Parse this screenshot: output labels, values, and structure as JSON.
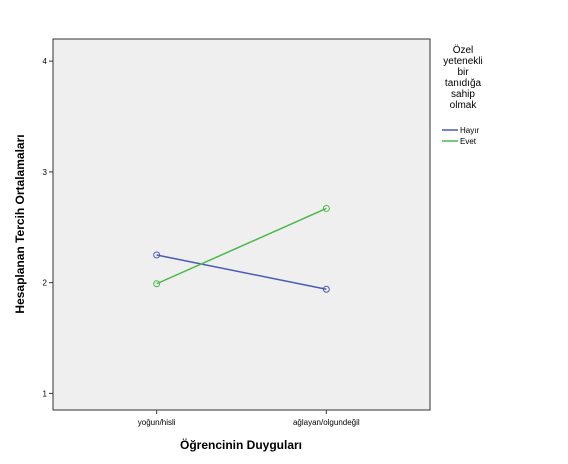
{
  "chart_data": {
    "type": "line",
    "xlabel": "Öğrencinin Duyguları",
    "ylabel": "Hesaplanan Tercih Ortalamaları",
    "categories": [
      "yoğun/hisli",
      "ağlayan/olgundeğil"
    ],
    "ylim": [
      0.85,
      4.2
    ],
    "yticks": [
      1,
      2,
      3,
      4
    ],
    "grid": false,
    "legend": {
      "title_lines": [
        "Özel",
        "yetenekli",
        "bir",
        "tanıdığa",
        "sahip",
        "olmak"
      ],
      "placement": "right"
    },
    "series": [
      {
        "name": "Hayır",
        "color": "#4a5bb4",
        "values": [
          2.25,
          1.94
        ]
      },
      {
        "name": "Evet",
        "color": "#4ab84a",
        "values": [
          1.99,
          2.67
        ]
      }
    ]
  },
  "colors": {
    "plot_background": "#efefef",
    "frame": "#333333"
  }
}
